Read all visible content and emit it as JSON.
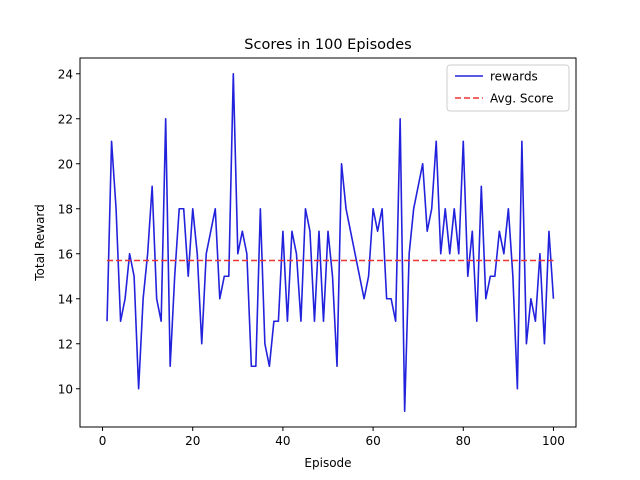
{
  "chart_data": {
    "type": "line",
    "title": "Scores in 100 Episodes",
    "xlabel": "Episode",
    "ylabel": "Total Reward",
    "xlim": [
      -5,
      105
    ],
    "ylim": [
      8.3,
      24.7
    ],
    "xticks": [
      0,
      20,
      40,
      60,
      80,
      100
    ],
    "yticks": [
      10,
      12,
      14,
      16,
      18,
      20,
      22,
      24
    ],
    "grid": false,
    "legend_position": "top-right",
    "x": [
      1,
      2,
      3,
      4,
      5,
      6,
      7,
      8,
      9,
      10,
      11,
      12,
      13,
      14,
      15,
      16,
      17,
      18,
      19,
      20,
      21,
      22,
      23,
      24,
      25,
      26,
      27,
      28,
      29,
      30,
      31,
      32,
      33,
      34,
      35,
      36,
      37,
      38,
      39,
      40,
      41,
      42,
      43,
      44,
      45,
      46,
      47,
      48,
      49,
      50,
      51,
      52,
      53,
      54,
      55,
      56,
      57,
      58,
      59,
      60,
      61,
      62,
      63,
      64,
      65,
      66,
      67,
      68,
      69,
      70,
      71,
      72,
      73,
      74,
      75,
      76,
      77,
      78,
      79,
      80,
      81,
      82,
      83,
      84,
      85,
      86,
      87,
      88,
      89,
      90,
      91,
      92,
      93,
      94,
      95,
      96,
      97,
      98,
      99,
      100
    ],
    "series": [
      {
        "name": "rewards",
        "color": "#2222dd",
        "style": "solid",
        "values": [
          13,
          21,
          18,
          13,
          14,
          16,
          15,
          10,
          14,
          16,
          19,
          14,
          13,
          22,
          11,
          15,
          18,
          18,
          15,
          18,
          16,
          12,
          16,
          17,
          18,
          14,
          15,
          15,
          24,
          16,
          17,
          16,
          11,
          11,
          18,
          12,
          11,
          13,
          13,
          17,
          13,
          17,
          16,
          13,
          18,
          17,
          13,
          17,
          13,
          17,
          15,
          11,
          20,
          18,
          17,
          16,
          15,
          14,
          15,
          18,
          17,
          18,
          14,
          14,
          13,
          22,
          9,
          16,
          18,
          19,
          20,
          17,
          18,
          21,
          16,
          18,
          16,
          18,
          16,
          21,
          15,
          17,
          13,
          19,
          14,
          15,
          15,
          17,
          16,
          18,
          15,
          10,
          21,
          12,
          14,
          13,
          16,
          12,
          17,
          14
        ]
      },
      {
        "name": "Avg. Score",
        "color": "#ee3333",
        "style": "dashed",
        "value": 15.7
      }
    ]
  }
}
